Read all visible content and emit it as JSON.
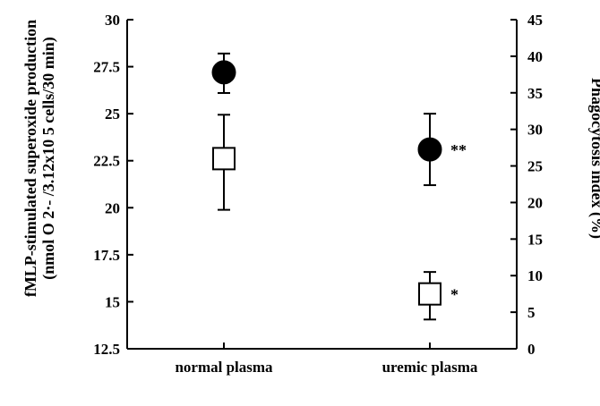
{
  "chart_data": {
    "type": "scatter",
    "categories": [
      "normal plasma",
      "uremic plasma"
    ],
    "y_left": {
      "label_line1": "fMLP-stimulated superoxide production",
      "label_line2": "(nmol O 2·- /3.12x10 5 cells/30 min)",
      "range": [
        12.5,
        30
      ],
      "ticks": [
        "12.5",
        "15",
        "17.5",
        "20",
        "22.5",
        "25",
        "27.5",
        "30"
      ]
    },
    "y_right": {
      "label": "Phagocytosis index (%)",
      "range": [
        0,
        45
      ],
      "ticks": [
        "0",
        "5",
        "10",
        "15",
        "20",
        "25",
        "30",
        "35",
        "40",
        "45"
      ]
    },
    "series": [
      {
        "marker": "filled-circle",
        "axis": "left",
        "points": [
          {
            "category": "normal plasma",
            "y": 27.2,
            "err_low": 26.1,
            "err_high": 28.2,
            "annotation": ""
          },
          {
            "category": "uremic plasma",
            "y": 23.1,
            "err_low": 21.2,
            "err_high": 25.0,
            "annotation": "**"
          }
        ]
      },
      {
        "marker": "open-square",
        "axis": "right",
        "points": [
          {
            "category": "normal plasma",
            "y": 26,
            "err_low": 19,
            "err_high": 32,
            "annotation": ""
          },
          {
            "category": "uremic plasma",
            "y": 7.5,
            "err_low": 4,
            "err_high": 10.5,
            "annotation": "*"
          }
        ]
      }
    ]
  }
}
